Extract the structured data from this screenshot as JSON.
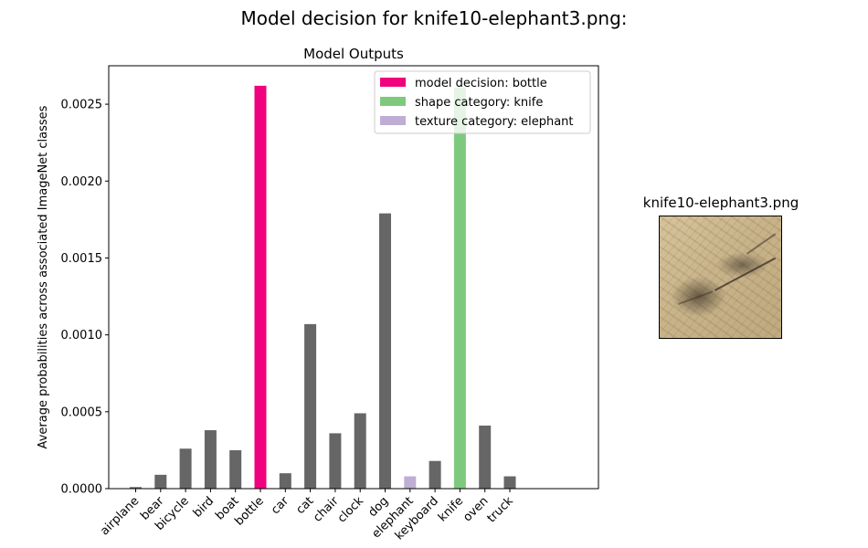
{
  "figure": {
    "suptitle": "Model decision for knife10-elephant3.png:",
    "thumbnail_title": "knife10-elephant3.png"
  },
  "chart_data": {
    "type": "bar",
    "title": "Model Outputs",
    "xlabel": "",
    "ylabel": "Average probabilities across associated ImageNet classes",
    "ylim": [
      0,
      0.00275
    ],
    "yticks": [
      "0.0000",
      "0.0005",
      "0.0010",
      "0.0015",
      "0.0020",
      "0.0025"
    ],
    "ytick_values": [
      0,
      0.0005,
      0.001,
      0.0015,
      0.002,
      0.0025
    ],
    "categories": [
      "airplane",
      "bear",
      "bicycle",
      "bird",
      "boat",
      "bottle",
      "car",
      "cat",
      "chair",
      "clock",
      "dog",
      "elephant",
      "keyboard",
      "knife",
      "oven",
      "truck"
    ],
    "values": [
      1e-05,
      9e-05,
      0.00026,
      0.00038,
      0.00025,
      0.00262,
      0.0001,
      0.00107,
      0.00036,
      0.00049,
      0.00179,
      8e-05,
      0.00018,
      0.00261,
      0.00041,
      8e-05
    ],
    "colors": [
      "#666666",
      "#666666",
      "#666666",
      "#666666",
      "#666666",
      "#f0027f",
      "#666666",
      "#666666",
      "#666666",
      "#666666",
      "#666666",
      "#beaed4",
      "#666666",
      "#7fc97f",
      "#666666",
      "#666666"
    ],
    "legend": {
      "placement": "top-right",
      "entries": [
        {
          "label": "model decision: bottle",
          "color": "#f0027f"
        },
        {
          "label": "shape category: knife",
          "color": "#7fc97f"
        },
        {
          "label": "texture category: elephant",
          "color": "#beaed4"
        }
      ]
    },
    "grid": false
  }
}
